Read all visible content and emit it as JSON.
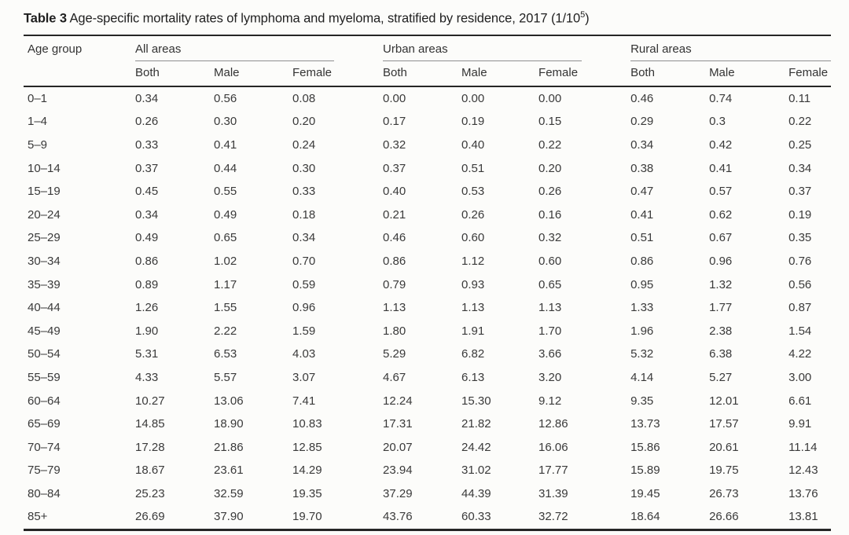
{
  "caption": {
    "label": "Table 3",
    "text": " Age-specific mortality rates of lymphoma and myeloma, stratified by residence, 2017 (1/10",
    "superscript": "5",
    "close": ")"
  },
  "columns": {
    "age_header": "Age group",
    "groups": [
      {
        "label": "All areas",
        "sub": [
          "Both",
          "Male",
          "Female"
        ]
      },
      {
        "label": "Urban areas",
        "sub": [
          "Both",
          "Male",
          "Female"
        ]
      },
      {
        "label": "Rural areas",
        "sub": [
          "Both",
          "Male",
          "Female"
        ]
      }
    ]
  },
  "table": {
    "rows": [
      {
        "age": "0–1",
        "values": [
          "0.34",
          "0.56",
          "0.08",
          "0.00",
          "0.00",
          "0.00",
          "0.46",
          "0.74",
          "0.11"
        ]
      },
      {
        "age": "1–4",
        "values": [
          "0.26",
          "0.30",
          "0.20",
          "0.17",
          "0.19",
          "0.15",
          "0.29",
          "0.3",
          "0.22"
        ]
      },
      {
        "age": "5–9",
        "values": [
          "0.33",
          "0.41",
          "0.24",
          "0.32",
          "0.40",
          "0.22",
          "0.34",
          "0.42",
          "0.25"
        ]
      },
      {
        "age": "10–14",
        "values": [
          "0.37",
          "0.44",
          "0.30",
          "0.37",
          "0.51",
          "0.20",
          "0.38",
          "0.41",
          "0.34"
        ]
      },
      {
        "age": "15–19",
        "values": [
          "0.45",
          "0.55",
          "0.33",
          "0.40",
          "0.53",
          "0.26",
          "0.47",
          "0.57",
          "0.37"
        ]
      },
      {
        "age": "20–24",
        "values": [
          "0.34",
          "0.49",
          "0.18",
          "0.21",
          "0.26",
          "0.16",
          "0.41",
          "0.62",
          "0.19"
        ]
      },
      {
        "age": "25–29",
        "values": [
          "0.49",
          "0.65",
          "0.34",
          "0.46",
          "0.60",
          "0.32",
          "0.51",
          "0.67",
          "0.35"
        ]
      },
      {
        "age": "30–34",
        "values": [
          "0.86",
          "1.02",
          "0.70",
          "0.86",
          "1.12",
          "0.60",
          "0.86",
          "0.96",
          "0.76"
        ]
      },
      {
        "age": "35–39",
        "values": [
          "0.89",
          "1.17",
          "0.59",
          "0.79",
          "0.93",
          "0.65",
          "0.95",
          "1.32",
          "0.56"
        ]
      },
      {
        "age": "40–44",
        "values": [
          "1.26",
          "1.55",
          "0.96",
          "1.13",
          "1.13",
          "1.13",
          "1.33",
          "1.77",
          "0.87"
        ]
      },
      {
        "age": "45–49",
        "values": [
          "1.90",
          "2.22",
          "1.59",
          "1.80",
          "1.91",
          "1.70",
          "1.96",
          "2.38",
          "1.54"
        ]
      },
      {
        "age": "50–54",
        "values": [
          "5.31",
          "6.53",
          "4.03",
          "5.29",
          "6.82",
          "3.66",
          "5.32",
          "6.38",
          "4.22"
        ]
      },
      {
        "age": "55–59",
        "values": [
          "4.33",
          "5.57",
          "3.07",
          "4.67",
          "6.13",
          "3.20",
          "4.14",
          "5.27",
          "3.00"
        ]
      },
      {
        "age": "60–64",
        "values": [
          "10.27",
          "13.06",
          "7.41",
          "12.24",
          "15.30",
          "9.12",
          "9.35",
          "12.01",
          "6.61"
        ]
      },
      {
        "age": "65–69",
        "values": [
          "14.85",
          "18.90",
          "10.83",
          "17.31",
          "21.82",
          "12.86",
          "13.73",
          "17.57",
          "9.91"
        ]
      },
      {
        "age": "70–74",
        "values": [
          "17.28",
          "21.86",
          "12.85",
          "20.07",
          "24.42",
          "16.06",
          "15.86",
          "20.61",
          "11.14"
        ]
      },
      {
        "age": "75–79",
        "values": [
          "18.67",
          "23.61",
          "14.29",
          "23.94",
          "31.02",
          "17.77",
          "15.89",
          "19.75",
          "12.43"
        ]
      },
      {
        "age": "80–84",
        "values": [
          "25.23",
          "32.59",
          "19.35",
          "37.29",
          "44.39",
          "31.39",
          "19.45",
          "26.73",
          "13.76"
        ]
      },
      {
        "age": "85+",
        "values": [
          "26.69",
          "37.90",
          "19.70",
          "43.76",
          "60.33",
          "32.72",
          "18.64",
          "26.66",
          "13.81"
        ]
      }
    ]
  },
  "colors": {
    "background": "#fcfcfa",
    "text": "#3a3a3a",
    "rule_dark": "#262626",
    "rule_light": "#8f8f8f"
  }
}
